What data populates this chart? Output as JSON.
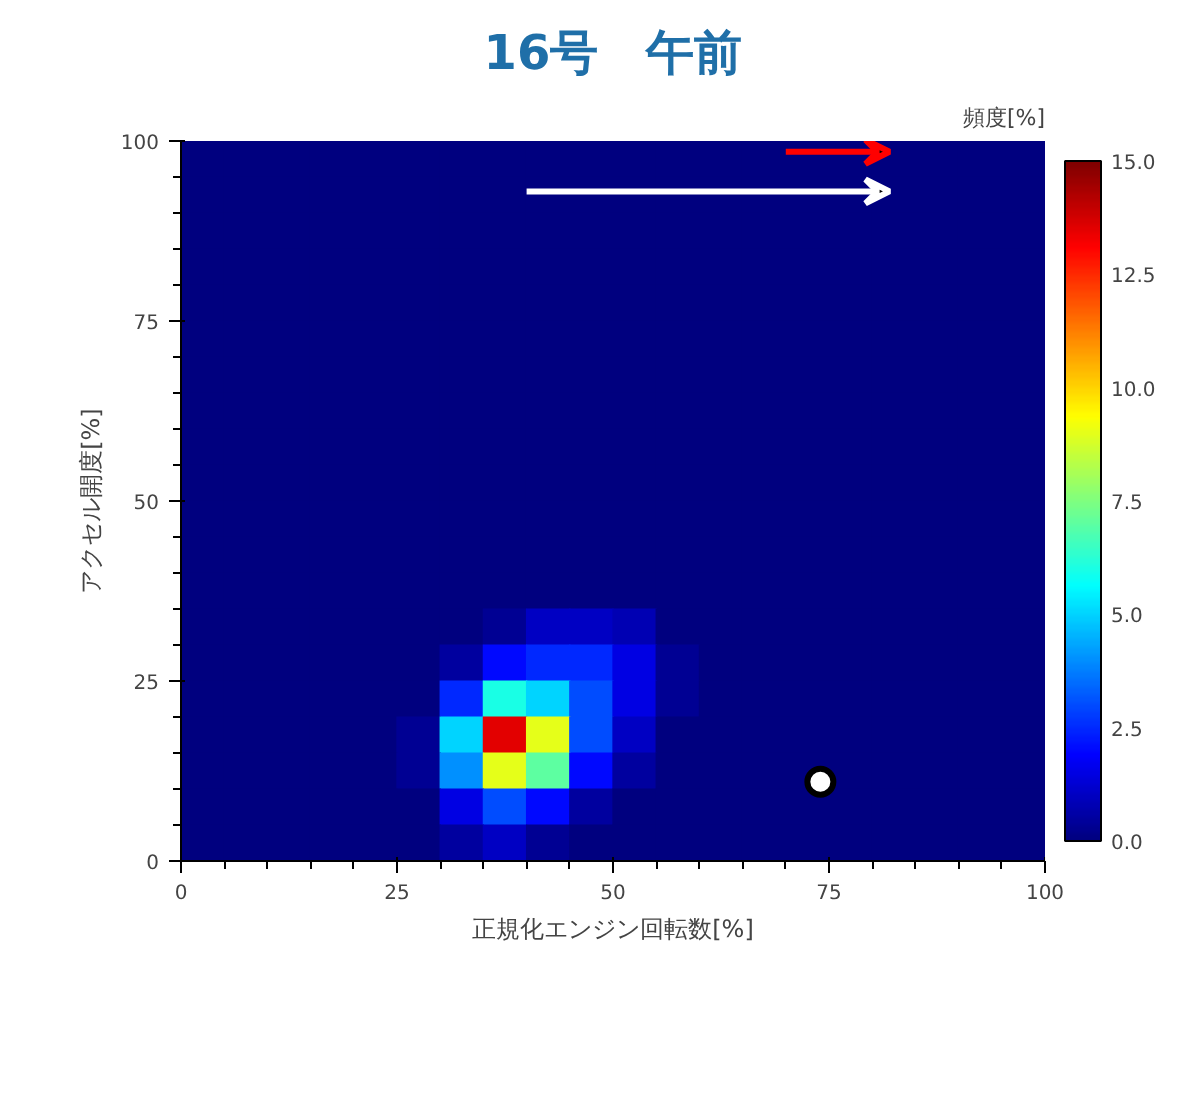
{
  "chart_data": {
    "type": "heatmap",
    "title": "16号　午前",
    "xlabel": "正規化エンジン回転数[%]",
    "ylabel": "アクセル開度[%]",
    "clabel": "頻度[%]",
    "x": [
      2.5,
      7.5,
      12.5,
      17.5,
      22.5,
      27.5,
      32.5,
      37.5,
      42.5,
      47.5,
      52.5,
      57.5,
      62.5,
      67.5,
      72.5,
      77.5,
      82.5,
      87.5,
      92.5,
      97.5
    ],
    "y": [
      97.5,
      92.5,
      87.5,
      82.5,
      77.5,
      72.5,
      67.5,
      62.5,
      57.5,
      52.5,
      47.5,
      42.5,
      37.5,
      32.5,
      27.5,
      22.5,
      17.5,
      12.5,
      7.5,
      2.5
    ],
    "cells": [
      [
        0,
        0,
        0,
        0,
        0,
        0,
        0,
        0,
        0,
        0,
        0,
        0,
        0,
        0,
        0,
        0,
        0,
        0,
        0,
        0
      ],
      [
        0,
        0,
        0,
        0,
        0,
        0,
        0,
        0,
        0,
        0,
        0,
        0,
        0,
        0,
        0,
        0,
        0,
        0,
        0,
        0
      ],
      [
        0,
        0,
        0,
        0,
        0,
        0,
        0,
        0,
        0,
        0,
        0,
        0,
        0,
        0,
        0,
        0,
        0,
        0,
        0,
        0
      ],
      [
        0,
        0,
        0,
        0,
        0,
        0,
        0,
        0,
        0,
        0,
        0,
        0,
        0,
        0,
        0,
        0,
        0,
        0,
        0,
        0
      ],
      [
        0,
        0,
        0,
        0,
        0,
        0,
        0,
        0,
        0,
        0,
        0,
        0,
        0,
        0,
        0,
        0,
        0,
        0,
        0,
        0
      ],
      [
        0,
        0,
        0,
        0,
        0,
        0,
        0,
        0,
        0,
        0,
        0,
        0,
        0,
        0,
        0,
        0,
        0,
        0,
        0,
        0
      ],
      [
        0,
        0,
        0,
        0,
        0,
        0,
        0,
        0,
        0,
        0,
        0,
        0,
        0,
        0,
        0,
        0,
        0,
        0,
        0,
        0
      ],
      [
        0,
        0,
        0,
        0,
        0,
        0,
        0,
        0,
        0,
        0,
        0,
        0,
        0,
        0,
        0,
        0,
        0,
        0,
        0,
        0
      ],
      [
        0,
        0,
        0,
        0,
        0,
        0,
        0,
        0,
        0,
        0,
        0,
        0,
        0,
        0,
        0,
        0,
        0,
        0,
        0,
        0
      ],
      [
        0,
        0,
        0,
        0,
        0,
        0,
        0,
        0,
        0,
        0,
        0,
        0,
        0,
        0,
        0,
        0,
        0,
        0,
        0,
        0
      ],
      [
        0,
        0,
        0,
        0,
        0,
        0,
        0,
        0,
        0,
        0,
        0,
        0,
        0,
        0,
        0,
        0,
        0,
        0,
        0,
        0
      ],
      [
        0,
        0,
        0,
        0,
        0,
        0,
        0,
        0,
        0,
        0,
        0,
        0,
        0,
        0,
        0,
        0,
        0,
        0,
        0,
        0
      ],
      [
        0,
        0,
        0,
        0,
        0,
        0,
        0,
        0,
        0,
        0,
        0,
        0,
        0,
        0,
        0,
        0,
        0,
        0,
        0,
        0
      ],
      [
        0,
        0,
        0,
        0,
        0,
        0,
        0,
        0.3,
        1,
        1,
        0.8,
        0,
        0,
        0,
        0,
        0,
        0,
        0,
        0,
        0
      ],
      [
        0,
        0,
        0,
        0,
        0,
        0,
        0.5,
        2,
        2.5,
        2.5,
        1.5,
        0.3,
        0,
        0,
        0,
        0,
        0,
        0,
        0,
        0
      ],
      [
        0,
        0,
        0,
        0,
        0,
        0,
        2.5,
        6,
        5,
        3,
        1.5,
        0.3,
        0,
        0,
        0,
        0,
        0,
        0,
        0,
        0
      ],
      [
        0,
        0,
        0,
        0,
        0,
        0.3,
        5,
        13.5,
        9,
        3,
        1,
        0,
        0,
        0,
        0,
        0,
        0,
        0,
        0,
        0
      ],
      [
        0,
        0,
        0,
        0,
        0,
        0.3,
        4,
        9,
        7,
        2,
        0.5,
        0,
        0,
        0,
        0,
        0,
        0,
        0,
        0,
        0
      ],
      [
        0,
        0,
        0,
        0,
        0,
        0,
        1.5,
        3,
        2,
        0.5,
        0,
        0,
        0,
        0,
        0,
        0,
        0,
        0,
        0,
        0
      ],
      [
        0,
        0,
        0,
        0,
        0,
        0,
        0.5,
        1,
        0.3,
        0,
        0,
        0,
        0,
        0,
        0,
        0,
        0,
        0,
        0,
        0
      ]
    ],
    "series": [
      {
        "type": "scatter",
        "x": [
          74
        ],
        "values": [
          11
        ],
        "color": "#ffffff"
      }
    ],
    "marker": "circle",
    "xlim": [
      0,
      100
    ],
    "ylim": [
      0,
      100
    ],
    "xticks": [
      0,
      25,
      50,
      75,
      100
    ],
    "yticks": [
      0,
      25,
      50,
      75,
      100
    ],
    "clim": [
      0,
      15
    ],
    "cticks": [
      {
        "value": 0,
        "label": "0.0"
      },
      {
        "value": 2.5,
        "label": "2.5"
      },
      {
        "value": 5,
        "label": "5.0"
      },
      {
        "value": 7.5,
        "label": "7.5"
      },
      {
        "value": 10,
        "label": "10.0"
      },
      {
        "value": 12.5,
        "label": "12.5"
      },
      {
        "value": 15,
        "label": "15.0"
      }
    ]
  }
}
